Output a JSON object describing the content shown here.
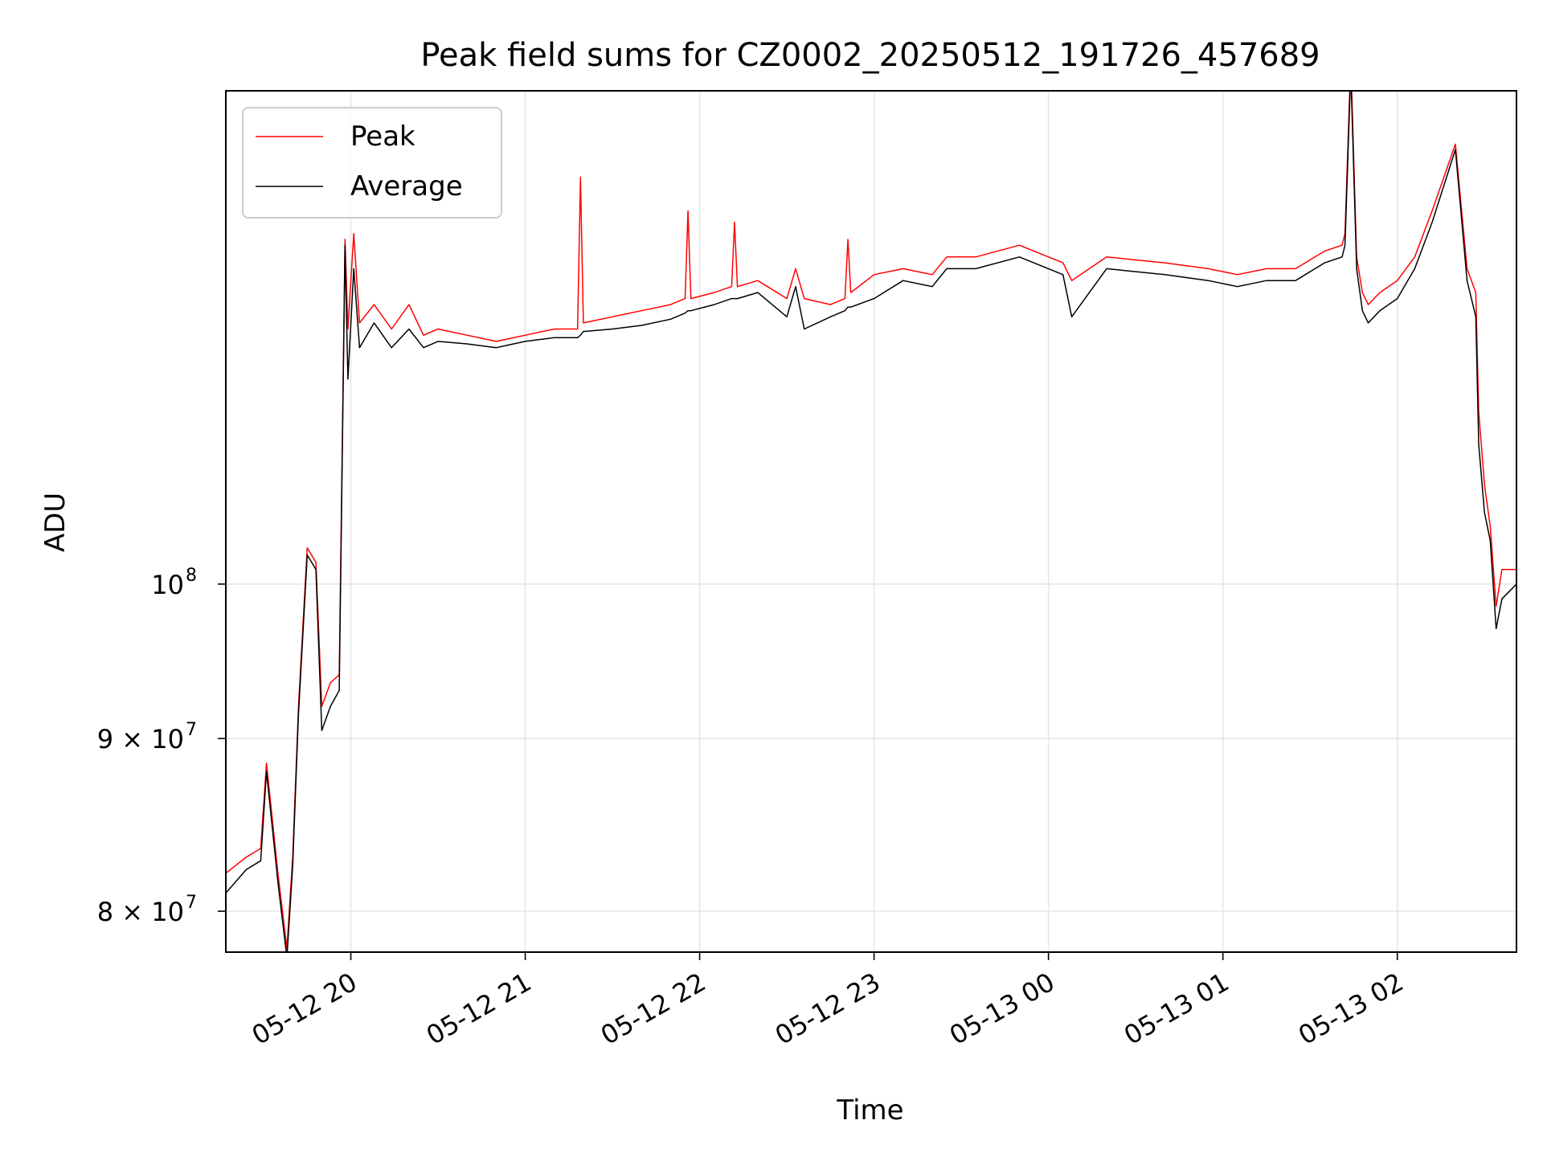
{
  "chart_data": {
    "type": "line",
    "title": "Peak field sums for CZ0002_20250512_191726_457689",
    "xlabel": "Time",
    "ylabel": "ADU",
    "yscale": "log",
    "grid": true,
    "legend_position": "top-left",
    "xlim": [
      "2025-05-12 19:17",
      "2025-05-13 02:41"
    ],
    "ylim": [
      77800000,
      140000000
    ],
    "x_ticks": [
      {
        "label": "05-12 20",
        "value": "2025-05-12 20:00"
      },
      {
        "label": "05-12 21",
        "value": "2025-05-12 21:00"
      },
      {
        "label": "05-12 22",
        "value": "2025-05-12 22:00"
      },
      {
        "label": "05-12 23",
        "value": "2025-05-12 23:00"
      },
      {
        "label": "05-13 00",
        "value": "2025-05-13 00:00"
      },
      {
        "label": "05-13 01",
        "value": "2025-05-13 01:00"
      },
      {
        "label": "05-13 02",
        "value": "2025-05-13 02:00"
      }
    ],
    "y_ticks": [
      {
        "mantissa": "",
        "base": "10",
        "exp": "8",
        "value": 100000000
      },
      {
        "mantissa": "9 × ",
        "base": "10",
        "exp": "7",
        "value": 90000000
      },
      {
        "mantissa": "8 × ",
        "base": "10",
        "exp": "7",
        "value": 80000000
      }
    ],
    "series": [
      {
        "name": "Peak",
        "color": "#ff0000",
        "x": [
          "2025-05-12 19:17",
          "2025-05-12 19:24",
          "2025-05-12 19:29",
          "2025-05-12 19:31",
          "2025-05-12 19:35",
          "2025-05-12 19:38",
          "2025-05-12 19:40",
          "2025-05-12 19:42",
          "2025-05-12 19:45",
          "2025-05-12 19:48",
          "2025-05-12 19:50",
          "2025-05-12 19:53",
          "2025-05-12 19:56",
          "2025-05-12 19:58",
          "2025-05-12 19:59",
          "2025-05-12 20:01",
          "2025-05-12 20:03",
          "2025-05-12 20:08",
          "2025-05-12 20:14",
          "2025-05-12 20:20",
          "2025-05-12 20:25",
          "2025-05-12 20:30",
          "2025-05-12 20:40",
          "2025-05-12 20:50",
          "2025-05-12 21:00",
          "2025-05-12 21:10",
          "2025-05-12 21:18",
          "2025-05-12 21:19",
          "2025-05-12 21:20",
          "2025-05-12 21:30",
          "2025-05-12 21:40",
          "2025-05-12 21:50",
          "2025-05-12 21:55",
          "2025-05-12 21:56",
          "2025-05-12 21:57",
          "2025-05-12 22:05",
          "2025-05-12 22:11",
          "2025-05-12 22:12",
          "2025-05-12 22:13",
          "2025-05-12 22:20",
          "2025-05-12 22:30",
          "2025-05-12 22:33",
          "2025-05-12 22:36",
          "2025-05-12 22:45",
          "2025-05-12 22:50",
          "2025-05-12 22:51",
          "2025-05-12 22:52",
          "2025-05-12 23:00",
          "2025-05-12 23:10",
          "2025-05-12 23:20",
          "2025-05-12 23:25",
          "2025-05-12 23:35",
          "2025-05-12 23:50",
          "2025-05-13 00:05",
          "2025-05-13 00:08",
          "2025-05-13 00:20",
          "2025-05-13 00:40",
          "2025-05-13 00:55",
          "2025-05-13 01:05",
          "2025-05-13 01:15",
          "2025-05-13 01:25",
          "2025-05-13 01:35",
          "2025-05-13 01:41",
          "2025-05-13 01:42",
          "2025-05-13 01:44",
          "2025-05-13 01:46",
          "2025-05-13 01:48",
          "2025-05-13 01:50",
          "2025-05-13 01:54",
          "2025-05-13 02:00",
          "2025-05-13 02:06",
          "2025-05-13 02:12",
          "2025-05-13 02:20",
          "2025-05-13 02:24",
          "2025-05-13 02:27",
          "2025-05-13 02:28",
          "2025-05-13 02:30",
          "2025-05-13 02:32",
          "2025-05-13 02:34",
          "2025-05-13 02:36",
          "2025-05-13 02:41"
        ],
        "values": [
          82100000,
          83000000,
          83500000,
          88500000,
          82000000,
          78000000,
          83000000,
          92000000,
          102500000,
          101500000,
          92000000,
          93500000,
          94000000,
          126500000,
          119000000,
          127000000,
          119500000,
          121000000,
          119000000,
          121000000,
          118500000,
          119000000,
          118500000,
          118000000,
          118500000,
          119000000,
          119000000,
          132000000,
          119500000,
          120000000,
          120500000,
          121000000,
          121500000,
          129000000,
          121500000,
          122000000,
          122500000,
          128000000,
          122500000,
          123000000,
          121500000,
          124000000,
          121500000,
          121000000,
          121500000,
          126500000,
          122000000,
          123500000,
          124000000,
          123500000,
          125000000,
          125000000,
          126000000,
          124500000,
          123000000,
          125000000,
          124500000,
          124000000,
          123500000,
          124000000,
          124000000,
          125500000,
          126000000,
          127000000,
          143000000,
          125000000,
          122000000,
          121000000,
          122000000,
          123000000,
          125000000,
          129000000,
          135000000,
          124000000,
          122000000,
          112500000,
          107000000,
          104000000,
          98500000,
          101000000,
          101000000
        ]
      },
      {
        "name": "Average",
        "color": "#000000",
        "x": [
          "2025-05-12 19:17",
          "2025-05-12 19:24",
          "2025-05-12 19:29",
          "2025-05-12 19:31",
          "2025-05-12 19:35",
          "2025-05-12 19:38",
          "2025-05-12 19:40",
          "2025-05-12 19:42",
          "2025-05-12 19:45",
          "2025-05-12 19:48",
          "2025-05-12 19:50",
          "2025-05-12 19:53",
          "2025-05-12 19:56",
          "2025-05-12 19:58",
          "2025-05-12 19:59",
          "2025-05-12 20:01",
          "2025-05-12 20:03",
          "2025-05-12 20:08",
          "2025-05-12 20:14",
          "2025-05-12 20:20",
          "2025-05-12 20:25",
          "2025-05-12 20:30",
          "2025-05-12 20:40",
          "2025-05-12 20:50",
          "2025-05-12 21:00",
          "2025-05-12 21:10",
          "2025-05-12 21:18",
          "2025-05-12 21:19",
          "2025-05-12 21:20",
          "2025-05-12 21:30",
          "2025-05-12 21:40",
          "2025-05-12 21:50",
          "2025-05-12 21:55",
          "2025-05-12 21:56",
          "2025-05-12 21:57",
          "2025-05-12 22:05",
          "2025-05-12 22:11",
          "2025-05-12 22:12",
          "2025-05-12 22:13",
          "2025-05-12 22:20",
          "2025-05-12 22:30",
          "2025-05-12 22:33",
          "2025-05-12 22:36",
          "2025-05-12 22:45",
          "2025-05-12 22:50",
          "2025-05-12 22:51",
          "2025-05-12 22:52",
          "2025-05-12 23:00",
          "2025-05-12 23:10",
          "2025-05-12 23:20",
          "2025-05-12 23:25",
          "2025-05-12 23:35",
          "2025-05-12 23:50",
          "2025-05-13 00:05",
          "2025-05-13 00:08",
          "2025-05-13 00:20",
          "2025-05-13 00:40",
          "2025-05-13 00:55",
          "2025-05-13 01:05",
          "2025-05-13 01:15",
          "2025-05-13 01:25",
          "2025-05-13 01:35",
          "2025-05-13 01:41",
          "2025-05-13 01:42",
          "2025-05-13 01:44",
          "2025-05-13 01:46",
          "2025-05-13 01:48",
          "2025-05-13 01:50",
          "2025-05-13 01:54",
          "2025-05-13 02:00",
          "2025-05-13 02:06",
          "2025-05-13 02:12",
          "2025-05-13 02:20",
          "2025-05-13 02:24",
          "2025-05-13 02:27",
          "2025-05-13 02:28",
          "2025-05-13 02:30",
          "2025-05-13 02:32",
          "2025-05-13 02:34",
          "2025-05-13 02:36",
          "2025-05-13 02:41"
        ],
        "values": [
          81000000,
          82300000,
          82800000,
          88000000,
          81500000,
          77500000,
          82500000,
          91500000,
          102000000,
          101000000,
          90500000,
          92000000,
          93000000,
          126000000,
          115000000,
          124000000,
          117500000,
          119500000,
          117500000,
          119000000,
          117500000,
          118000000,
          117800000,
          117500000,
          118000000,
          118300000,
          118300000,
          118500000,
          118800000,
          119000000,
          119300000,
          119800000,
          120300000,
          120500000,
          120500000,
          121000000,
          121500000,
          121500000,
          121500000,
          122000000,
          120000000,
          122500000,
          119000000,
          120000000,
          120500000,
          120800000,
          120800000,
          121500000,
          123000000,
          122500000,
          124000000,
          124000000,
          125000000,
          123500000,
          120000000,
          124000000,
          123500000,
          123000000,
          122500000,
          123000000,
          123000000,
          124500000,
          125000000,
          126000000,
          142000000,
          124000000,
          120500000,
          119500000,
          120500000,
          121500000,
          124000000,
          128000000,
          134500000,
          123000000,
          120000000,
          110000000,
          105000000,
          103000000,
          97000000,
          99000000,
          100000000
        ]
      }
    ]
  }
}
